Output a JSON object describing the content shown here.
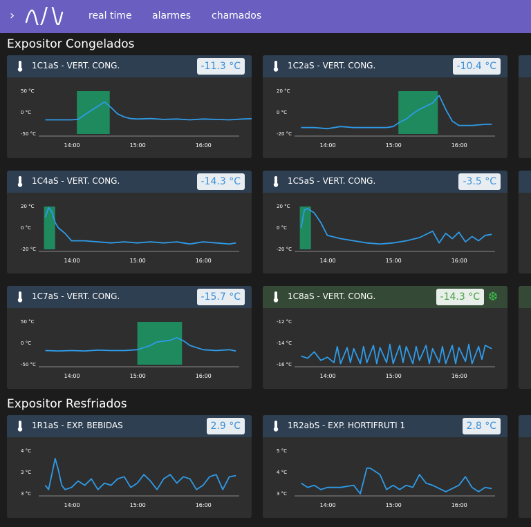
{
  "topbar": {
    "nav": [
      {
        "label": "real time",
        "active": true
      },
      {
        "label": "alarmes",
        "active": false
      },
      {
        "label": "chamados",
        "active": false
      }
    ]
  },
  "sections": [
    {
      "title": "Expositor Congelados"
    },
    {
      "title": "Expositor Resfriados"
    }
  ],
  "colors": {
    "accent": "#6a5fc1",
    "line": "#2f9be8",
    "defrost": "#1f8a5e",
    "ok": "#46a04a"
  },
  "cards": [
    {
      "name": "1C1aS - VERT. CONG.",
      "temp": "-11.3 °C",
      "status": "normal",
      "yticks": [
        "50 °C",
        "0 °C",
        "-50 °C"
      ],
      "xticks": [
        "14:00",
        "15:00",
        "16:00"
      ],
      "chart_data": {
        "type": "line",
        "ylim": [
          -50,
          50
        ],
        "x": [
          13.6,
          13.8,
          14.0,
          14.1,
          14.2,
          14.3,
          14.4,
          14.5,
          14.6,
          14.7,
          14.8,
          14.9,
          15.0,
          15.2,
          15.4,
          15.6,
          15.8,
          16.0,
          16.2,
          16.4,
          16.6,
          16.8
        ],
        "values": [
          -17,
          -17,
          -17,
          -16,
          -5,
          5,
          15,
          25,
          12,
          -3,
          -10,
          -14,
          -15,
          -14,
          -16,
          -15,
          -17,
          -15,
          -16,
          -17,
          -15,
          -14
        ],
        "defrost": [
          [
            14.08,
            14.58
          ]
        ]
      }
    },
    {
      "name": "1C2aS - VERT. CONG.",
      "temp": "-10.4 °C",
      "status": "normal",
      "yticks": [
        "20 °C",
        "0 °C",
        "-20 °C"
      ],
      "xticks": [
        "14:00",
        "15:00",
        "16:00"
      ],
      "chart_data": {
        "type": "line",
        "ylim": [
          -20,
          20
        ],
        "x": [
          13.6,
          13.8,
          14.0,
          14.2,
          14.4,
          14.6,
          14.8,
          14.9,
          15.0,
          15.1,
          15.2,
          15.3,
          15.4,
          15.5,
          15.6,
          15.7,
          15.8,
          15.9,
          16.0,
          16.2,
          16.4,
          16.5
        ],
        "values": [
          -14,
          -14,
          -15,
          -13,
          -14,
          -14,
          -14,
          -14,
          -13,
          -9,
          -6,
          -1,
          3,
          6,
          9,
          16,
          3,
          -8,
          -12,
          -12,
          -11,
          -11
        ],
        "defrost": [
          [
            15.08,
            15.68
          ]
        ]
      }
    },
    {
      "name": "1C4aS - VERT. CONG.",
      "temp": "-14.3 °C",
      "status": "normal",
      "yticks": [
        "20 °C",
        "0 °C",
        "-20 °C"
      ],
      "xticks": [
        "14:00",
        "15:00",
        "16:00"
      ],
      "chart_data": {
        "type": "line",
        "ylim": [
          -20,
          20
        ],
        "x": [
          13.6,
          13.65,
          13.7,
          13.75,
          13.8,
          13.9,
          14.0,
          14.2,
          14.4,
          14.6,
          14.8,
          15.0,
          15.2,
          15.4,
          15.6,
          15.8,
          16.0,
          16.2,
          16.4,
          16.5
        ],
        "values": [
          10,
          19,
          15,
          5,
          0,
          -5,
          -12,
          -12,
          -13,
          -14,
          -13,
          -14,
          -13,
          -14,
          -13,
          -15,
          -13,
          -14,
          -15,
          -14
        ],
        "defrost": [
          [
            13.58,
            13.75
          ]
        ]
      }
    },
    {
      "name": "1C5aS - VERT. CONG.",
      "temp": "-3.5 °C",
      "status": "normal",
      "yticks": [
        "20 °C",
        "0 °C",
        "-20 °C"
      ],
      "xticks": [
        "14:00",
        "15:00",
        "16:00"
      ],
      "chart_data": {
        "type": "line",
        "ylim": [
          -20,
          20
        ],
        "x": [
          13.6,
          13.65,
          13.7,
          13.8,
          13.9,
          14.0,
          14.2,
          14.4,
          14.6,
          14.8,
          15.0,
          15.2,
          15.4,
          15.6,
          15.7,
          15.8,
          15.9,
          16.0,
          16.1,
          16.2,
          16.3,
          16.4,
          16.5
        ],
        "values": [
          0,
          17,
          18,
          14,
          5,
          -7,
          -10,
          -12,
          -14,
          -15,
          -14,
          -12,
          -9,
          -3,
          -14,
          -5,
          -10,
          -4,
          -13,
          -8,
          -12,
          -7,
          -6
        ],
        "defrost": [
          [
            13.58,
            13.75
          ]
        ]
      }
    },
    {
      "name": "1C7aS - VERT. CONG.",
      "temp": "-15.7 °C",
      "status": "normal",
      "yticks": [
        "50 °C",
        "0 °C",
        "-50 °C"
      ],
      "xticks": [
        "14:00",
        "15:00",
        "16:00"
      ],
      "chart_data": {
        "type": "line",
        "ylim": [
          -50,
          50
        ],
        "x": [
          13.6,
          13.8,
          14.0,
          14.2,
          14.4,
          14.6,
          14.8,
          15.0,
          15.1,
          15.2,
          15.3,
          15.4,
          15.5,
          15.6,
          15.7,
          15.8,
          16.0,
          16.2,
          16.4,
          16.5
        ],
        "values": [
          -17,
          -18,
          -17,
          -18,
          -16,
          -17,
          -17,
          -15,
          -10,
          -5,
          3,
          5,
          7,
          13,
          6,
          -5,
          -15,
          -17,
          -15,
          -18
        ],
        "defrost": [
          [
            15.0,
            15.68
          ]
        ]
      }
    },
    {
      "name": "1C8aS - VERT. CONG.",
      "temp": "-14.3 °C",
      "status": "ok",
      "yticks": [
        "-12 °C",
        "-14 °C",
        "-16 °C"
      ],
      "xticks": [
        "14:00",
        "15:00",
        "16:00"
      ],
      "chart_data": {
        "type": "line",
        "ylim": [
          -16,
          -12
        ],
        "x": [
          13.6,
          13.7,
          13.8,
          13.9,
          14.0,
          14.1,
          14.15,
          14.2,
          14.3,
          14.35,
          14.4,
          14.5,
          14.55,
          14.6,
          14.7,
          14.75,
          14.8,
          14.9,
          14.95,
          15.0,
          15.1,
          15.15,
          15.2,
          15.3,
          15.35,
          15.4,
          15.5,
          15.55,
          15.6,
          15.7,
          15.75,
          15.8,
          15.9,
          15.95,
          16.0,
          16.1,
          16.15,
          16.2,
          16.3,
          16.35,
          16.4,
          16.5
        ],
        "values": [
          -15.2,
          -15.4,
          -14.8,
          -15.6,
          -15.3,
          -15.8,
          -14.3,
          -15.9,
          -14.4,
          -15.8,
          -14.5,
          -15.9,
          -14.3,
          -15.8,
          -14.2,
          -15.9,
          -14.4,
          -15.8,
          -14.1,
          -15.9,
          -14.2,
          -15.8,
          -14.3,
          -15.9,
          -14.3,
          -15.6,
          -14.2,
          -15.9,
          -14.5,
          -15.8,
          -14.3,
          -15.9,
          -14.2,
          -15.9,
          -14.4,
          -15.7,
          -14.1,
          -15.9,
          -14.3,
          -15.5,
          -14.2,
          -14.5
        ],
        "defrost": []
      }
    },
    {
      "name": "1R1aS - EXP. BEBIDAS",
      "temp": "2.9 °C",
      "status": "normal",
      "yticks": [
        "4 °C",
        "3 °C",
        "3 °C"
      ],
      "xticks": [
        "14:00",
        "15:00",
        "16:00"
      ],
      "chart_data": {
        "type": "line",
        "ylim": [
          2,
          4
        ],
        "x": [
          13.6,
          13.65,
          13.75,
          13.8,
          13.85,
          13.9,
          14.0,
          14.1,
          14.2,
          14.3,
          14.4,
          14.5,
          14.6,
          14.7,
          14.8,
          14.9,
          15.0,
          15.1,
          15.2,
          15.3,
          15.4,
          15.5,
          15.6,
          15.7,
          15.8,
          15.9,
          16.0,
          16.1,
          16.2,
          16.3,
          16.4,
          16.5
        ],
        "values": [
          2.4,
          2.2,
          3.65,
          3.1,
          2.4,
          2.2,
          2.3,
          2.6,
          2.4,
          2.7,
          2.2,
          2.5,
          2.4,
          2.7,
          2.8,
          2.3,
          2.5,
          2.9,
          2.6,
          2.2,
          2.7,
          2.9,
          2.5,
          2.8,
          2.7,
          2.2,
          2.4,
          2.8,
          2.9,
          2.2,
          2.8,
          2.85
        ],
        "defrost": []
      }
    },
    {
      "name": "1R2abS - EXP. HORTIFRUTI 1",
      "temp": "2.8 °C",
      "status": "normal",
      "yticks": [
        "5 °C",
        "4 °C",
        "3 °C"
      ],
      "xticks": [
        "14:00",
        "15:00",
        "16:00"
      ],
      "chart_data": {
        "type": "line",
        "ylim": [
          3,
          5
        ],
        "x": [
          13.6,
          13.7,
          13.8,
          13.9,
          14.0,
          14.2,
          14.4,
          14.5,
          14.6,
          14.65,
          14.7,
          14.8,
          14.9,
          15.0,
          15.1,
          15.2,
          15.3,
          15.4,
          15.5,
          15.6,
          15.8,
          16.0,
          16.1,
          16.2,
          16.3,
          16.4,
          16.5
        ],
        "values": [
          3.5,
          3.3,
          3.4,
          3.2,
          3.3,
          3.3,
          3.4,
          3.0,
          4.2,
          4.2,
          4.1,
          3.9,
          3.2,
          3.4,
          3.2,
          3.4,
          3.3,
          3.9,
          3.5,
          3.4,
          3.1,
          3.4,
          3.8,
          3.3,
          3.1,
          3.3,
          3.25
        ],
        "defrost": []
      }
    }
  ]
}
